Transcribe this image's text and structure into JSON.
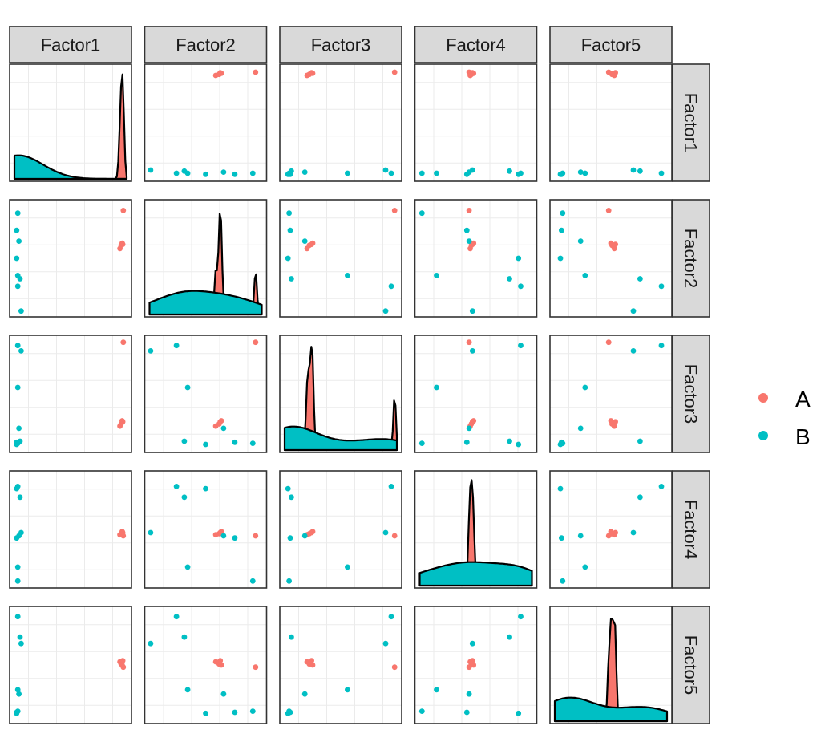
{
  "chart_data": {
    "type": "scatter-matrix",
    "variables": [
      "Factor1",
      "Factor2",
      "Factor3",
      "Factor4",
      "Factor5"
    ],
    "legend": {
      "position": "right",
      "entries": [
        {
          "label": "A",
          "color": "#F8766D"
        },
        {
          "label": "B",
          "color": "#00BFC4"
        }
      ]
    },
    "grid": true,
    "diagonal": "density",
    "groups": {
      "A": {
        "color": "#F8766D",
        "points": [
          [
            0.97,
            0.945,
            0.98,
            0.44,
            0.48
          ],
          [
            0.95,
            0.62,
            0.22,
            0.46,
            0.51
          ],
          [
            0.96,
            0.64,
            0.25,
            0.48,
            0.5
          ],
          [
            0.94,
            0.59,
            0.2,
            0.45,
            0.53
          ],
          [
            0.965,
            0.63,
            0.24,
            0.47,
            0.54
          ]
        ]
      },
      "B": {
        "color": "#00BFC4",
        "points": [
          [
            0.03,
            0.92,
            0.04,
            0.02,
            0.07
          ],
          [
            0.02,
            0.76,
            0.05,
            0.42,
            0.06
          ],
          [
            0.04,
            0.66,
            0.18,
            0.44,
            0.23
          ],
          [
            0.02,
            0.5,
            0.03,
            0.88,
            0.05
          ],
          [
            0.03,
            0.24,
            0.95,
            0.9,
            0.95
          ],
          [
            0.03,
            0.34,
            0.56,
            0.15,
            0.27
          ],
          [
            0.06,
            0.01,
            0.9,
            0.47,
            0.7
          ],
          [
            0.05,
            0.31,
            0.06,
            0.8,
            0.76
          ]
        ]
      }
    }
  }
}
